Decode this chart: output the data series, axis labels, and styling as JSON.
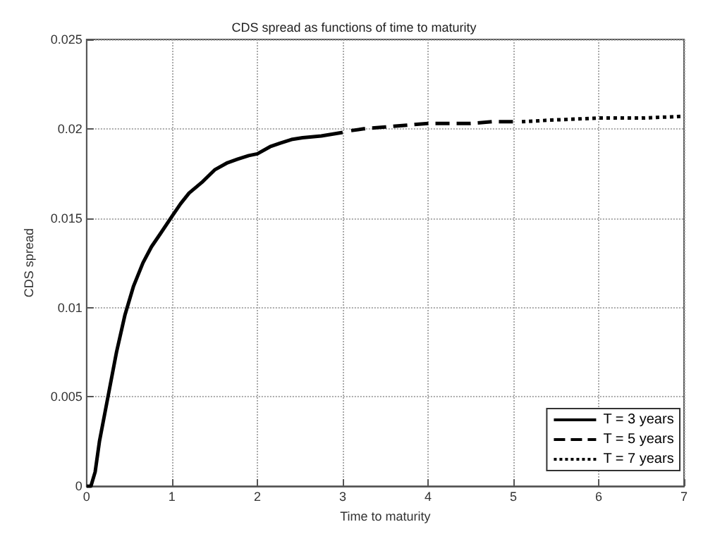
{
  "chart_data": {
    "type": "line",
    "title": "CDS spread as functions of time to maturity",
    "xlabel": "Time to maturity",
    "ylabel": "CDS spread",
    "xlim": [
      0,
      7
    ],
    "xticks": [
      0,
      1,
      2,
      3,
      4,
      5,
      6,
      7
    ],
    "ylim": [
      0,
      0.025
    ],
    "yticks": [
      0,
      0.005,
      0.01,
      0.015,
      0.02,
      0.025
    ],
    "grid": true,
    "legend": "bottom right",
    "series": [
      {
        "name": "T = 3 years",
        "color": "#000000",
        "line_style": "solid",
        "x": [
          0,
          0.05,
          0.1,
          0.15,
          0.25,
          0.35,
          0.45,
          0.55,
          0.66,
          0.76,
          0.86,
          1.0,
          1.1,
          1.2,
          1.35,
          1.5,
          1.65,
          1.77,
          1.9,
          2.0,
          2.15,
          2.27,
          2.4,
          2.53,
          2.75,
          3.0
        ],
        "values": [
          0,
          0,
          0.0008,
          0.0025,
          0.005,
          0.0075,
          0.0096,
          0.0112,
          0.0125,
          0.0134,
          0.0141,
          0.0151,
          0.0158,
          0.0164,
          0.017,
          0.0177,
          0.0181,
          0.0183,
          0.0185,
          0.0186,
          0.019,
          0.0192,
          0.0194,
          0.0195,
          0.0196,
          0.0198
        ]
      },
      {
        "name": "T = 5 years",
        "color": "#000000",
        "line_style": "dashed",
        "x": [
          3.1,
          3.25,
          3.5,
          3.75,
          4.0,
          4.25,
          4.5,
          4.75,
          5.0
        ],
        "values": [
          0.0199,
          0.02,
          0.0201,
          0.0202,
          0.0203,
          0.0203,
          0.0203,
          0.0204,
          0.0204
        ]
      },
      {
        "name": "T = 7 years",
        "color": "#000000",
        "line_style": "dotted",
        "x": [
          5.1,
          5.5,
          6.0,
          6.5,
          7.0
        ],
        "values": [
          0.0204,
          0.0205,
          0.0206,
          0.0206,
          0.0207
        ]
      }
    ]
  }
}
